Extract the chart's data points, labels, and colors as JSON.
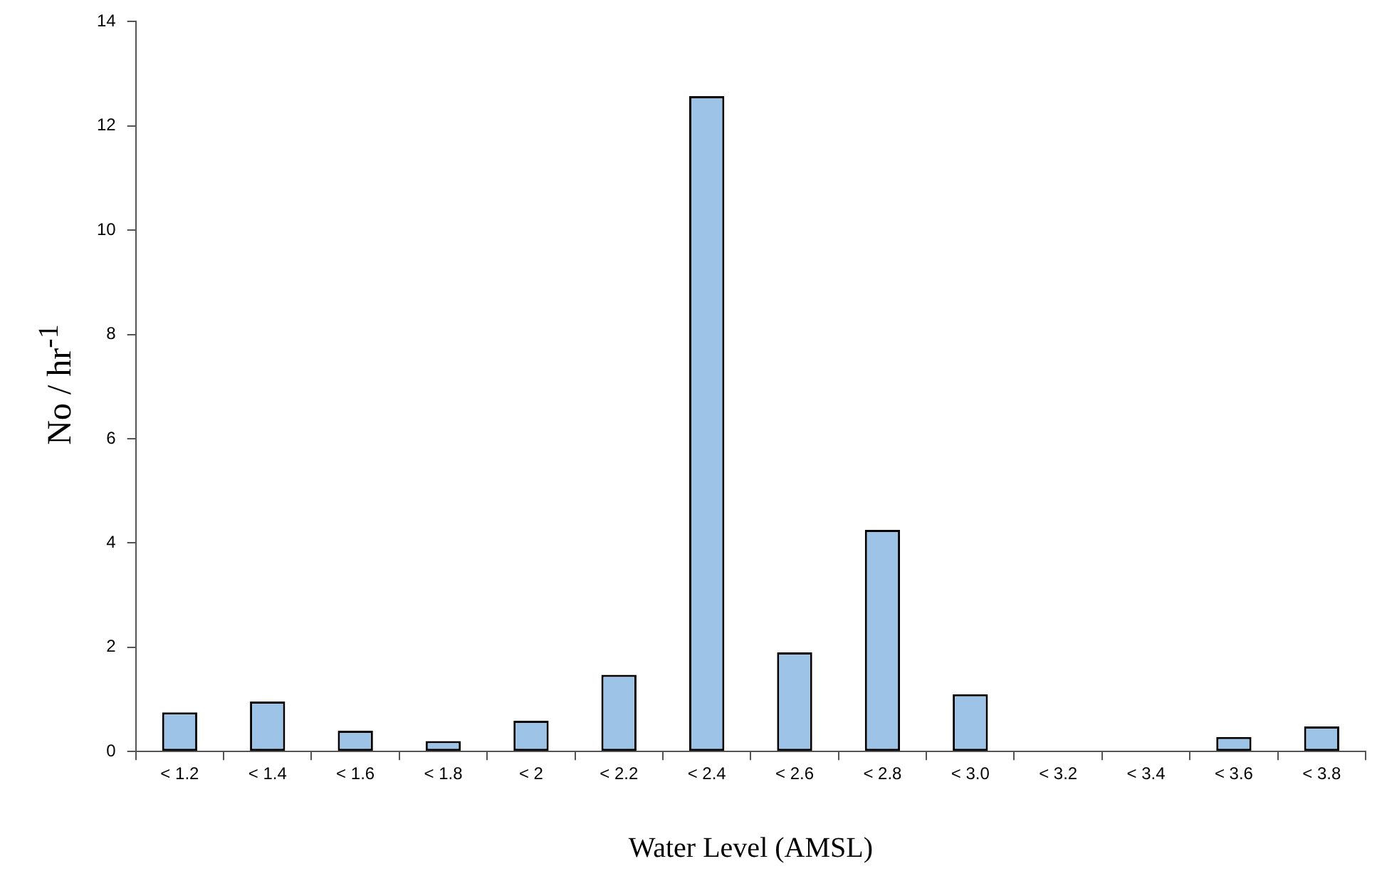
{
  "chart_data": {
    "type": "bar",
    "xlabel": "Water Level (AMSL)",
    "ylabel": "No / hr$^{-1}$",
    "categories": [
      "< 1.2",
      "< 1.4",
      "< 1.6",
      "< 1.8",
      "< 2",
      "< 2.2",
      "< 2.4",
      "< 2.6",
      "< 2.8",
      "< 3.0",
      "< 3.2",
      "< 3.4",
      "< 3.6",
      "< 3.8"
    ],
    "values": [
      0.75,
      0.96,
      0.4,
      0.2,
      0.59,
      1.47,
      12.57,
      1.9,
      4.25,
      1.1,
      0,
      0,
      0.28,
      0.48
    ],
    "color": "#9dc3e6",
    "ylim": [
      0,
      14
    ],
    "yticks": [
      0,
      2,
      4,
      6,
      8,
      10,
      12,
      14
    ],
    "grid": false,
    "legend": false
  }
}
